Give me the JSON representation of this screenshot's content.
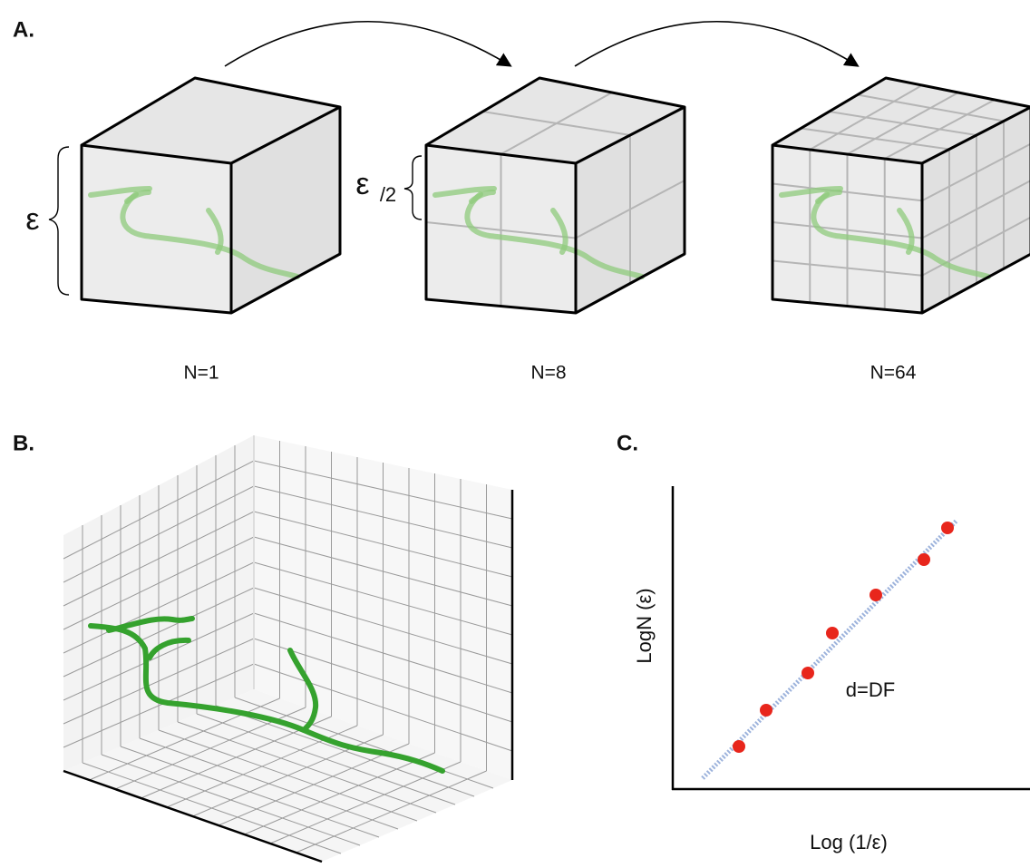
{
  "panels": [
    {
      "label": "A.",
      "cubes": [
        {
          "caption": "N=1",
          "scale_label": "ε"
        },
        {
          "caption": "N=8",
          "scale_label": "ε",
          "scale_divisor": "/2"
        },
        {
          "caption": "N=64"
        }
      ]
    },
    {
      "label": "B."
    },
    {
      "label": "C.",
      "y_label": "LogN (ε)",
      "x_label": "Log (1/ε)",
      "annotation": "d=DF"
    }
  ]
}
